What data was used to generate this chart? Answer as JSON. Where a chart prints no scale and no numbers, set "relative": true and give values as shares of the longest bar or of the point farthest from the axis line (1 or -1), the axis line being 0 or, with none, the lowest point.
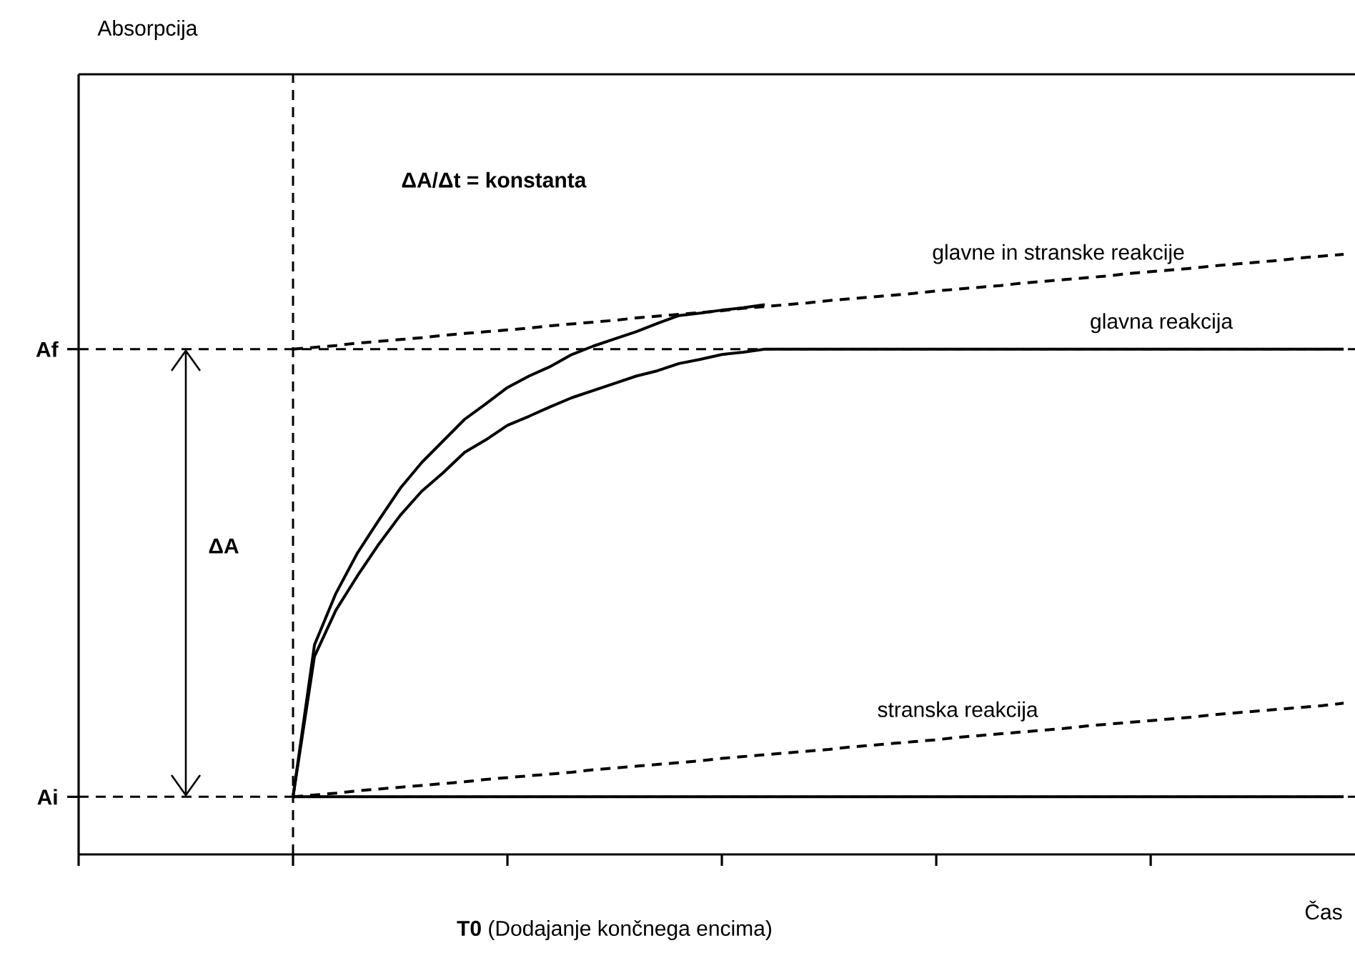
{
  "chart_data": {
    "type": "line",
    "relative": true,
    "xlabel": "Čas",
    "categories": [
      null,
      null,
      null,
      null,
      null,
      null,
      null,
      null,
      null,
      null,
      null,
      null,
      null,
      null,
      null,
      null,
      null,
      null,
      null,
      null,
      null,
      null,
      null,
      null,
      null,
      null,
      null,
      null,
      null,
      null,
      null,
      null,
      null,
      null,
      null,
      null,
      null,
      null,
      null,
      null,
      null,
      null,
      null,
      null,
      null,
      null,
      null,
      null,
      null,
      null,
      null,
      null,
      null,
      null,
      null,
      null,
      null,
      null,
      null,
      null
    ],
    "annotations": [
      "Absorpcija",
      "ΔA/Δt = konstanta",
      "ΔA",
      "**T0** (Dodajanje končnega encima)"
    ],
    "ref_lines": [
      {
        "axis": "y",
        "value": 0.842,
        "label": "Af",
        "line_style": "dashed"
      },
      {
        "axis": "y",
        "value": 0.096,
        "label": "Ai",
        "line_style": "dashed"
      }
    ],
    "series": [
      {
        "color": "#000000",
        "line_style": "solid",
        "values": [
          null,
          null,
          null,
          null,
          null,
          null,
          null,
          null,
          null,
          null,
          0.096,
          0.349,
          0.435,
          0.502,
          0.557,
          0.61,
          0.653,
          0.689,
          0.725,
          0.751,
          0.778,
          0.797,
          0.813,
          0.833,
          0.847,
          0.859,
          0.871,
          0.885,
          0.898,
          0.902,
          0.907,
          0.911,
          0.916,
          null,
          null,
          null,
          null,
          null,
          null,
          null,
          null,
          null,
          null,
          null,
          null,
          null,
          null,
          null,
          null,
          null,
          null,
          null,
          null,
          null,
          null,
          null,
          null,
          null,
          null,
          null
        ]
      },
      {
        "name": "glavne in stranske reakcije",
        "color": "#000000",
        "line_style": "dashed",
        "values": [
          null,
          null,
          null,
          null,
          null,
          null,
          null,
          null,
          null,
          null,
          0.842,
          0.845,
          0.848,
          0.852,
          0.855,
          0.858,
          0.861,
          0.865,
          0.868,
          0.871,
          0.874,
          0.877,
          0.881,
          0.884,
          0.887,
          0.89,
          0.894,
          0.897,
          0.9,
          0.903,
          0.906,
          0.91,
          0.913,
          0.916,
          0.919,
          0.923,
          0.926,
          0.929,
          0.932,
          0.935,
          0.939,
          0.942,
          0.945,
          0.948,
          0.952,
          0.955,
          0.958,
          0.961,
          0.964,
          0.968,
          0.971,
          0.974,
          0.977,
          0.981,
          0.984,
          0.987,
          0.99,
          0.994,
          0.997,
          1.0
        ]
      },
      {
        "name": "glavna reakcija",
        "color": "#000000",
        "line_style": "solid",
        "values": [
          null,
          null,
          null,
          null,
          null,
          null,
          null,
          null,
          null,
          null,
          0.096,
          0.33,
          0.407,
          0.464,
          0.517,
          0.565,
          0.605,
          0.636,
          0.67,
          0.691,
          0.715,
          0.73,
          0.746,
          0.761,
          0.773,
          0.785,
          0.797,
          0.806,
          0.818,
          0.825,
          0.833,
          0.837,
          0.842,
          0.842,
          0.842,
          0.842,
          0.842,
          0.842,
          0.842,
          0.842,
          0.842,
          0.842,
          0.842,
          0.842,
          0.842,
          0.842,
          0.842,
          0.842,
          0.842,
          0.842,
          0.842,
          0.842,
          0.842,
          0.842,
          0.842,
          0.842,
          0.842,
          0.842,
          0.842,
          0.842
        ]
      },
      {
        "name": "stranska reakcija",
        "color": "#000000",
        "line_style": "dashed",
        "values": [
          null,
          null,
          null,
          null,
          null,
          null,
          null,
          null,
          null,
          null,
          0.096,
          0.099,
          0.102,
          0.106,
          0.109,
          0.112,
          0.115,
          0.118,
          0.121,
          0.125,
          0.128,
          0.131,
          0.134,
          0.137,
          0.141,
          0.144,
          0.147,
          0.15,
          0.153,
          0.156,
          0.16,
          0.163,
          0.166,
          0.169,
          0.172,
          0.175,
          0.179,
          0.182,
          0.185,
          0.188,
          0.191,
          0.195,
          0.198,
          0.201,
          0.204,
          0.207,
          0.21,
          0.214,
          0.217,
          0.22,
          0.223,
          0.226,
          0.229,
          0.233,
          0.236,
          0.239,
          0.242,
          0.245,
          0.248,
          0.252
        ]
      },
      {
        "color": "#000000",
        "line_style": "solid",
        "values": [
          null,
          null,
          null,
          null,
          null,
          null,
          null,
          null,
          null,
          null,
          0.096,
          0.096,
          0.096,
          0.096,
          0.096,
          0.096,
          0.096,
          0.096,
          0.096,
          0.096,
          0.096,
          0.096,
          0.096,
          0.096,
          0.096,
          0.096,
          0.096,
          0.096,
          0.096,
          0.096,
          0.096,
          0.096,
          0.096,
          0.096,
          0.096,
          0.096,
          0.096,
          0.096,
          0.096,
          0.096,
          0.096,
          0.096,
          0.096,
          0.096,
          0.096,
          0.096,
          0.096,
          0.096,
          0.096,
          0.096,
          0.096,
          0.096,
          0.096,
          0.096,
          0.096,
          0.096,
          0.096,
          0.096,
          0.096,
          0.096
        ]
      }
    ]
  }
}
